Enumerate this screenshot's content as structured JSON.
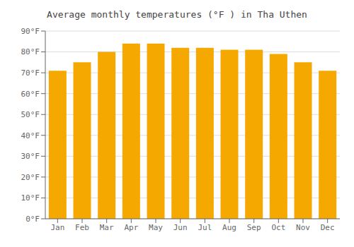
{
  "chart_data": {
    "type": "bar",
    "title": "Average monthly temperatures (°F ) in Tha Uthen",
    "categories": [
      "Jan",
      "Feb",
      "Mar",
      "Apr",
      "May",
      "Jun",
      "Jul",
      "Aug",
      "Sep",
      "Oct",
      "Nov",
      "Dec"
    ],
    "values": [
      71,
      75,
      80,
      84,
      84,
      82,
      82,
      81,
      81,
      79,
      75,
      71
    ],
    "color": "#F5A800",
    "ylim": [
      0,
      90
    ],
    "yticks": [
      {
        "value": 0,
        "label": "0°F"
      },
      {
        "value": 10,
        "label": "10°F"
      },
      {
        "value": 20,
        "label": "20°F"
      },
      {
        "value": 30,
        "label": "30°F"
      },
      {
        "value": 40,
        "label": "40°F"
      },
      {
        "value": 50,
        "label": "50°F"
      },
      {
        "value": 60,
        "label": "60°F"
      },
      {
        "value": 70,
        "label": "70°F"
      },
      {
        "value": 80,
        "label": "80°F"
      },
      {
        "value": 90,
        "label": "90°F"
      }
    ],
    "grid": true
  }
}
